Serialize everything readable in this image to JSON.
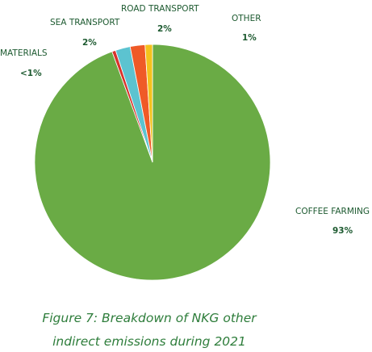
{
  "chart_data": {
    "type": "pie",
    "title": "Figure 7: Breakdown of NKG other indirect emissions during 2021",
    "categories": [
      "COFFEE FARMING",
      "MATERIALS",
      "SEA TRANSPORT",
      "ROAD TRANSPORT",
      "OTHER"
    ],
    "values": [
      93,
      0.5,
      2,
      2,
      1
    ],
    "value_labels": [
      "93%",
      "<1%",
      "2%",
      "2%",
      "1%"
    ],
    "colors": [
      "#6aab45",
      "#d8322b",
      "#5cc3d0",
      "#ef5a27",
      "#f4c21c"
    ]
  }
}
